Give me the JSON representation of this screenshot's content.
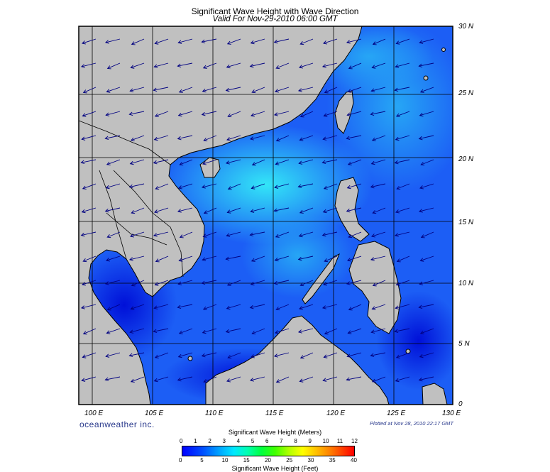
{
  "header": {
    "title": "Significant Wave Height with Wave Direction",
    "subtitle": "Valid For Nov-29-2010 06:00 GMT"
  },
  "axes": {
    "lon_labels": [
      "100 E",
      "105 E",
      "110 E",
      "115 E",
      "120 E",
      "125 E",
      "130 E"
    ],
    "lat_labels": [
      "30 N",
      "25 N",
      "20 N",
      "15 N",
      "10 N",
      "5 N",
      "0"
    ]
  },
  "footer": {
    "brand": "oceanweather inc.",
    "plotted": "Plotted at Nov 28, 2010 22:17 GMT"
  },
  "legend": {
    "meters_title": "Significant Wave Height (Meters)",
    "feet_title": "Significant Wave Height (Feet)",
    "meters_ticks": [
      "0",
      "1",
      "2",
      "3",
      "4",
      "5",
      "6",
      "7",
      "8",
      "9",
      "10",
      "11",
      "12"
    ],
    "feet_ticks": [
      "0",
      "5",
      "10",
      "15",
      "20",
      "25",
      "30",
      "35",
      "40"
    ]
  },
  "colors": {
    "land": "#c0c0c0",
    "deep_blue": "#0018e0",
    "mid_blue": "#1a5cf5",
    "light_blue": "#2ea8f5",
    "cyan": "#30e0f5",
    "arrow": "#000080"
  },
  "chart_data": {
    "type": "heatmap",
    "title": "Significant Wave Height with Wave Direction",
    "subtitle": "Valid For Nov-29-2010 06:00 GMT",
    "lon_range": [
      99,
      130
    ],
    "lat_range": [
      0,
      30
    ],
    "xlabel": "",
    "ylabel": "",
    "grid": true,
    "colorbar_meters": [
      0,
      12
    ],
    "colorbar_feet": [
      0,
      40
    ],
    "wave_direction": "toward south-west"
  }
}
